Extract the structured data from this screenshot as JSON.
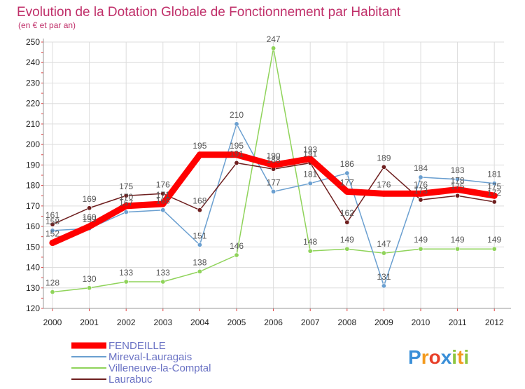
{
  "chart_data": {
    "type": "line",
    "title": "Evolution de la Dotation Globale de Fonctionnement par Habitant",
    "subtitle": "(en € et par an)",
    "xlabel": "",
    "ylabel": "",
    "ylim": [
      120,
      250
    ],
    "yticks": [
      120,
      130,
      140,
      150,
      160,
      170,
      180,
      190,
      200,
      210,
      220,
      230,
      240,
      250
    ],
    "categories": [
      "2000",
      "2001",
      "2002",
      "2003",
      "2004",
      "2005",
      "2006",
      "2007",
      "2008",
      "2009",
      "2010",
      "2011",
      "2012"
    ],
    "grid": true,
    "legend_position": "bottom-left",
    "series": [
      {
        "name": "Villeneuve-la-Comptal",
        "color": "#8fd35a",
        "values": [
          128,
          130,
          133,
          133,
          138,
          146,
          247,
          148,
          149,
          147,
          149,
          149,
          149
        ],
        "labels": [
          "128",
          "130",
          "133",
          "133",
          "138",
          "146",
          "247",
          "148",
          "149",
          "147",
          "149",
          "149",
          "149"
        ]
      },
      {
        "name": "Mireval-Lauragais",
        "color": "#6a9fd0",
        "values": [
          158,
          159,
          167,
          168,
          151,
          210,
          177,
          181,
          186,
          131,
          184,
          183,
          181
        ],
        "labels": [
          "158",
          "159",
          "167",
          "168",
          "151",
          "210",
          "177",
          "181",
          "186",
          "131",
          "184",
          "183",
          "181"
        ]
      },
      {
        "name": "Laurabuc",
        "color": "#6e1f1f",
        "values": [
          161,
          169,
          175,
          176,
          168,
          191,
          188,
          191,
          162,
          189,
          173,
          175,
          172
        ],
        "labels": [
          "161",
          "169",
          "175",
          "176",
          "168",
          "191",
          "188",
          "191",
          "162",
          "189",
          "173",
          "175",
          "172"
        ]
      },
      {
        "name": "FENDEILLE",
        "color": "#ff0000",
        "values": [
          152,
          160,
          170,
          171,
          195,
          195,
          190,
          193,
          177,
          176,
          176,
          178,
          175
        ],
        "labels": [
          "152",
          "160",
          "170",
          "171",
          "195",
          "195",
          "190",
          "193",
          "177",
          "176",
          "176",
          "178",
          "175"
        ]
      }
    ]
  },
  "legend": {
    "items": [
      {
        "label": "FENDEILLE",
        "color": "#ff0000",
        "text_color": "#6a72c4",
        "thick": true
      },
      {
        "label": "Mireval-Lauragais",
        "color": "#6a9fd0",
        "text_color": "#6a72c4",
        "thick": false
      },
      {
        "label": "Villeneuve-la-Comptal",
        "color": "#8fd35a",
        "text_color": "#6a72c4",
        "thick": false
      },
      {
        "label": "Laurabuc",
        "color": "#6e1f1f",
        "text_color": "#6a72c4",
        "thick": false
      }
    ]
  },
  "logo": {
    "text": "Proxiti",
    "letters": [
      {
        "ch": "P",
        "color": "#3a8fd8"
      },
      {
        "ch": "r",
        "color": "#f39a1e"
      },
      {
        "ch": "o",
        "color": "#e8402a"
      },
      {
        "ch": "x",
        "color": "#3a8fd8"
      },
      {
        "ch": "i",
        "color": "#8cc63f"
      },
      {
        "ch": "t",
        "color": "#f39a1e"
      },
      {
        "ch": "i",
        "color": "#8cc63f"
      }
    ]
  },
  "colors": {
    "title": "#c0306a",
    "subtitle": "#c0306a",
    "axis_text": "#222222",
    "grid": "#dddddd",
    "axis": "#999999"
  }
}
